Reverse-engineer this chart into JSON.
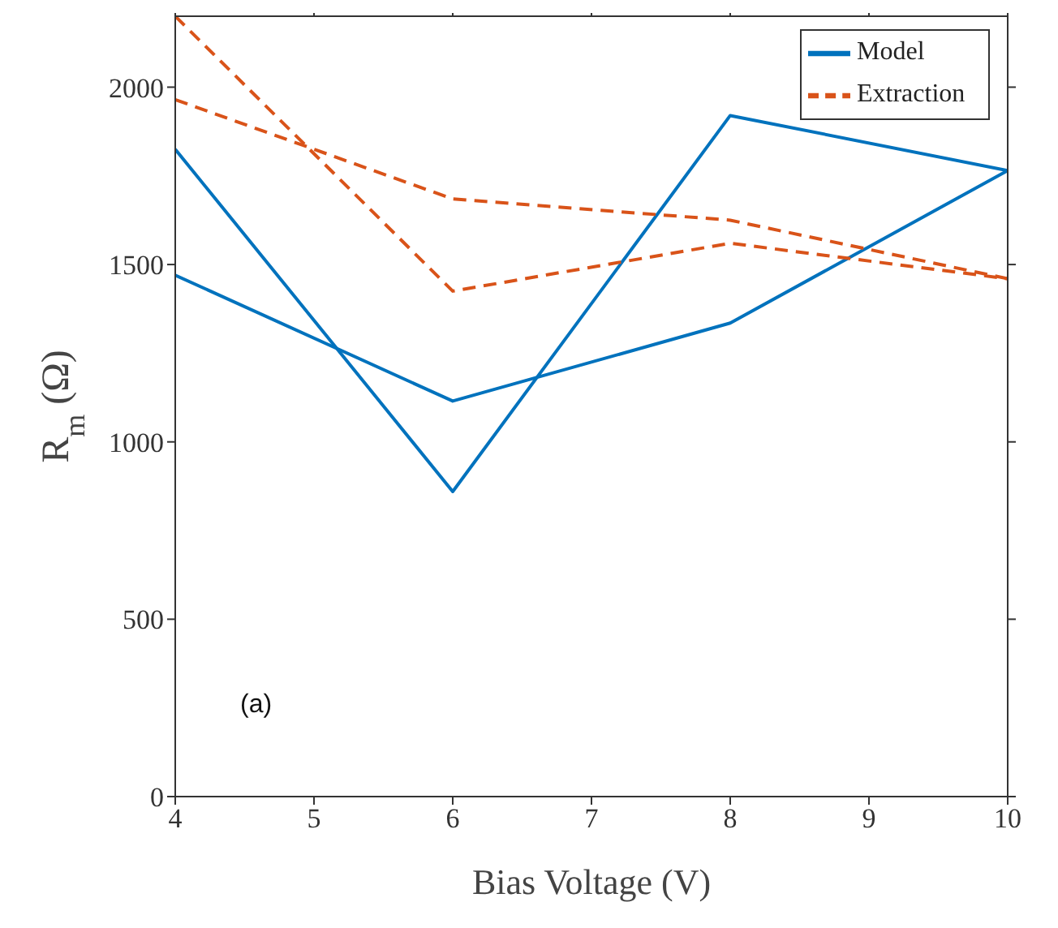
{
  "chart_data": {
    "type": "line",
    "xlabel": "Bias Voltage (V)",
    "ylabel": "R$_{m}$ (Ω)",
    "x": [
      4,
      6,
      8,
      10
    ],
    "series": [
      {
        "name": "Model",
        "color": "#0072bd",
        "values": [
          1825,
          860,
          1920,
          1765
        ],
        "line_style": "solid"
      },
      {
        "color": "#0072bd",
        "values": [
          1470,
          1115,
          1335,
          1765
        ],
        "line_style": "solid"
      },
      {
        "name": "Extraction",
        "color": "#d95319",
        "values": [
          2200,
          1425,
          1560,
          1460
        ],
        "line_style": "dashed"
      },
      {
        "color": "#d95319",
        "values": [
          1965,
          1685,
          1625,
          1460
        ],
        "line_style": "dashed"
      }
    ],
    "xlim": [
      4,
      10
    ],
    "xticks": [
      4,
      5,
      6,
      7,
      8,
      9,
      10
    ],
    "ylim": [
      0,
      2200
    ],
    "yticks": [
      0,
      500,
      1000,
      1500,
      2000
    ],
    "legend": "top right",
    "marker": "none",
    "annotations": [
      "(a)"
    ]
  }
}
